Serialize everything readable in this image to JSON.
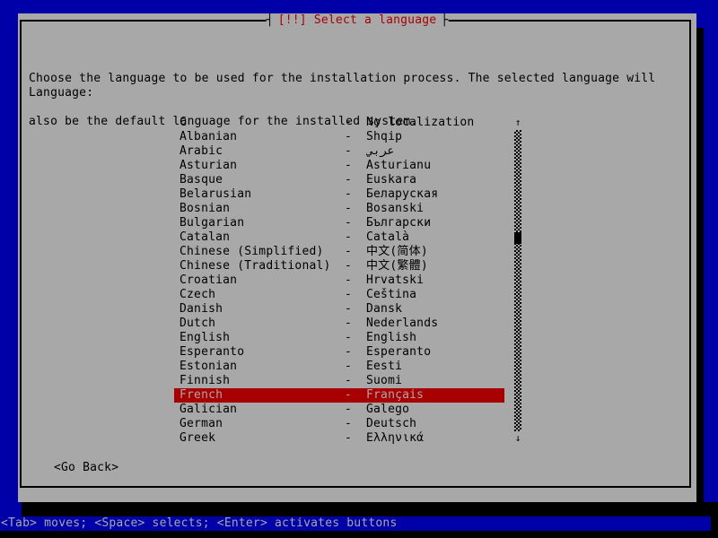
{
  "colors": {
    "background_blue": "#0000A8",
    "dialog_gray": "#A8A8A8",
    "accent_red": "#A80000",
    "shadow_black": "#000000",
    "text_black": "#000000",
    "selected_text": "#A8A8A8"
  },
  "title": {
    "tick_left": "┤",
    "text": "[!!] Select a language",
    "tick_right": "├"
  },
  "dialog": {
    "instructions_line1": "Choose the language to be used for the installation process. The selected language will",
    "instructions_line2": "also be the default language for the installed system.",
    "field_label": "Language:",
    "go_back_label": "<Go Back>"
  },
  "language_list": {
    "separator": "-",
    "selected_index": 19,
    "items": [
      {
        "name": "C",
        "value": "No localization"
      },
      {
        "name": "Albanian",
        "value": "Shqip"
      },
      {
        "name": "Arabic",
        "value": "عربي"
      },
      {
        "name": "Asturian",
        "value": "Asturianu"
      },
      {
        "name": "Basque",
        "value": "Euskara"
      },
      {
        "name": "Belarusian",
        "value": "Беларуская"
      },
      {
        "name": "Bosnian",
        "value": "Bosanski"
      },
      {
        "name": "Bulgarian",
        "value": "Български"
      },
      {
        "name": "Catalan",
        "value": "Català"
      },
      {
        "name": "Chinese (Simplified)",
        "value": "中文(简体)"
      },
      {
        "name": "Chinese (Traditional)",
        "value": "中文(繁體)"
      },
      {
        "name": "Croatian",
        "value": "Hrvatski"
      },
      {
        "name": "Czech",
        "value": "Čeština"
      },
      {
        "name": "Danish",
        "value": "Dansk"
      },
      {
        "name": "Dutch",
        "value": "Nederlands"
      },
      {
        "name": "English",
        "value": "English"
      },
      {
        "name": "Esperanto",
        "value": "Esperanto"
      },
      {
        "name": "Estonian",
        "value": "Eesti"
      },
      {
        "name": "Finnish",
        "value": "Suomi"
      },
      {
        "name": "French",
        "value": "Français"
      },
      {
        "name": "Galician",
        "value": "Galego"
      },
      {
        "name": "German",
        "value": "Deutsch"
      },
      {
        "name": "Greek",
        "value": "Ελληνικά"
      }
    ]
  },
  "scrollbar": {
    "up_arrow": "↑",
    "down_arrow": "↓"
  },
  "help_bar": {
    "text": "<Tab> moves; <Space> selects; <Enter> activates buttons"
  }
}
